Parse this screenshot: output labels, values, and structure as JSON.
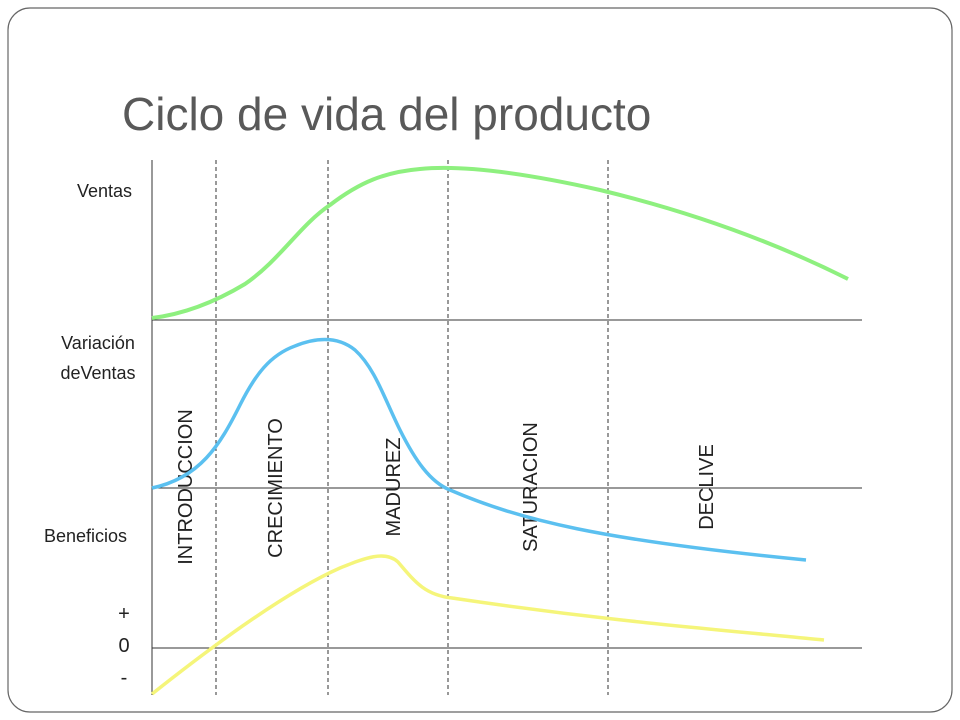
{
  "title": "Ciclo de vida del producto",
  "rows": [
    "Ventas",
    "Variación",
    "deVentas",
    "Beneficios"
  ],
  "levels": [
    "+",
    "0",
    "-"
  ],
  "stages": [
    "INTRODUCCION",
    "CRECIMIENTO",
    "MADUREZ",
    "SATURACION",
    "DECLIVE"
  ]
}
